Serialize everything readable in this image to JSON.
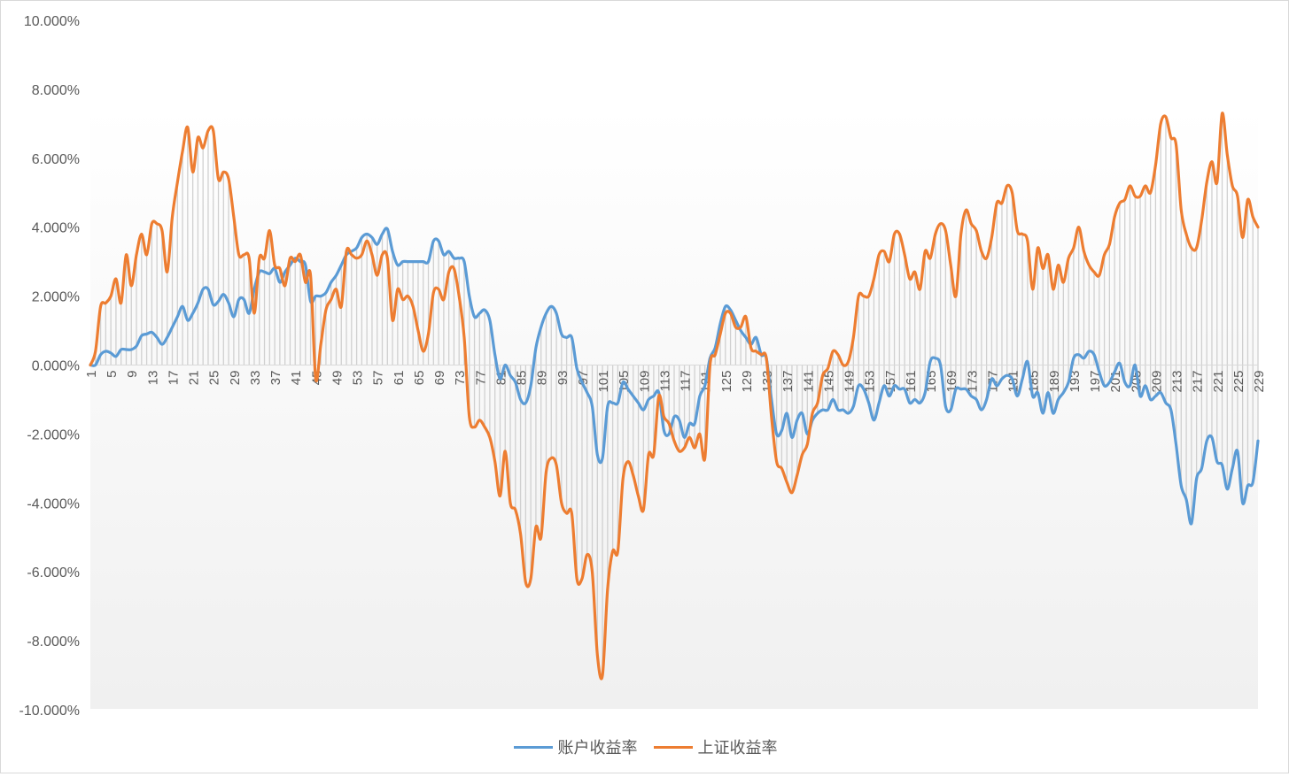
{
  "chart_data": {
    "type": "line",
    "title": "",
    "xlabel": "",
    "ylabel": "",
    "ylim": [
      -10,
      10
    ],
    "y_unit": "%",
    "y_ticks": [
      "10.000%",
      "8.000%",
      "6.000%",
      "4.000%",
      "2.000%",
      "0.000%",
      "-2.000%",
      "-4.000%",
      "-6.000%",
      "-8.000%",
      "-10.000%"
    ],
    "x_range": [
      1,
      229
    ],
    "x_tick_step": 4,
    "legend_position": "bottom",
    "drop_lines": true,
    "series": [
      {
        "name": "账户收益率",
        "color": "#5b9bd5",
        "values": [
          0.0,
          0.0,
          0.3,
          0.4,
          0.35,
          0.25,
          0.45,
          0.45,
          0.45,
          0.55,
          0.85,
          0.9,
          0.95,
          0.8,
          0.6,
          0.8,
          1.1,
          1.4,
          1.7,
          1.3,
          1.5,
          1.8,
          2.2,
          2.2,
          1.75,
          1.85,
          2.05,
          1.8,
          1.4,
          1.9,
          1.9,
          1.5,
          2.2,
          2.7,
          2.7,
          2.65,
          2.8,
          2.4,
          2.7,
          2.9,
          3.1,
          3.0,
          2.9,
          1.85,
          2.0,
          2.0,
          2.1,
          2.4,
          2.6,
          2.9,
          3.2,
          3.3,
          3.4,
          3.7,
          3.8,
          3.7,
          3.5,
          3.8,
          3.95,
          3.3,
          2.9,
          3.0,
          3.0,
          3.0,
          3.0,
          3.0,
          3.0,
          3.6,
          3.6,
          3.2,
          3.3,
          3.1,
          3.1,
          3.0,
          2.0,
          1.4,
          1.5,
          1.6,
          1.3,
          0.3,
          -0.4,
          0.0,
          -0.3,
          -0.5,
          -1.0,
          -1.1,
          -0.6,
          0.5,
          1.1,
          1.5,
          1.7,
          1.5,
          0.9,
          0.8,
          0.8,
          -0.1,
          -0.5,
          -0.8,
          -1.2,
          -2.6,
          -2.7,
          -1.2,
          -1.1,
          -1.1,
          -0.5,
          -0.7,
          -0.9,
          -1.1,
          -1.3,
          -1.0,
          -0.9,
          -0.8,
          -1.9,
          -2.0,
          -1.5,
          -1.6,
          -2.1,
          -1.7,
          -1.7,
          -0.9,
          -0.6,
          0.2,
          0.5,
          1.2,
          1.7,
          1.6,
          1.3,
          1.0,
          0.8,
          0.6,
          0.8,
          0.3,
          0.2,
          -1.0,
          -2.0,
          -1.9,
          -1.4,
          -2.1,
          -1.6,
          -1.4,
          -2.0,
          -1.6,
          -1.4,
          -1.3,
          -1.3,
          -1.0,
          -1.3,
          -1.3,
          -1.4,
          -1.2,
          -0.6,
          -0.7,
          -1.1,
          -1.6,
          -1.1,
          -0.6,
          -0.9,
          -0.6,
          -0.7,
          -0.7,
          -1.1,
          -1.0,
          -1.1,
          -0.8,
          0.1,
          0.2,
          0.0,
          -1.2,
          -1.3,
          -0.7,
          -0.7,
          -0.7,
          -0.9,
          -1.0,
          -1.3,
          -1.0,
          -0.4,
          -0.6,
          -0.4,
          -0.3,
          -0.4,
          -0.9,
          -0.4,
          0.1,
          -0.9,
          -0.8,
          -1.4,
          -0.8,
          -1.4,
          -1.0,
          -0.8,
          -0.5,
          0.2,
          0.3,
          0.2,
          0.4,
          0.3,
          -0.2,
          -0.6,
          -0.5,
          -0.2,
          0.05,
          -0.5,
          -0.6,
          0.0,
          -0.9,
          -0.6,
          -1.0,
          -0.9,
          -0.8,
          -1.1,
          -1.3,
          -2.3,
          -3.5,
          -3.9,
          -4.6,
          -3.3,
          -3.0,
          -2.2,
          -2.1,
          -2.8,
          -2.9,
          -3.6,
          -3.0,
          -2.5,
          -4.0,
          -3.5,
          -3.4,
          -2.2
        ]
      },
      {
        "name": "上证收益率",
        "color": "#ed7d31",
        "values": [
          0.0,
          0.4,
          1.7,
          1.8,
          2.0,
          2.5,
          1.8,
          3.2,
          2.3,
          3.2,
          3.8,
          3.2,
          4.1,
          4.1,
          3.9,
          2.7,
          4.3,
          5.3,
          6.2,
          6.9,
          5.6,
          6.6,
          6.3,
          6.8,
          6.8,
          5.4,
          5.6,
          5.4,
          4.3,
          3.2,
          3.2,
          3.1,
          1.5,
          3.1,
          3.1,
          3.9,
          2.9,
          2.8,
          2.3,
          3.1,
          3.0,
          3.2,
          2.4,
          2.6,
          -0.4,
          0.6,
          1.6,
          1.9,
          2.2,
          1.7,
          3.3,
          3.2,
          3.1,
          3.2,
          3.6,
          3.2,
          2.6,
          3.2,
          3.1,
          1.3,
          2.2,
          1.9,
          2.0,
          1.7,
          1.0,
          0.4,
          0.9,
          2.1,
          2.2,
          1.9,
          2.7,
          2.8,
          2.0,
          0.8,
          -1.5,
          -1.8,
          -1.6,
          -1.8,
          -2.1,
          -2.8,
          -3.8,
          -2.5,
          -4.0,
          -4.2,
          -4.9,
          -6.3,
          -6.2,
          -4.7,
          -5.0,
          -3.1,
          -2.7,
          -2.9,
          -4.0,
          -4.3,
          -4.3,
          -6.2,
          -6.2,
          -5.5,
          -6.0,
          -8.4,
          -9.0,
          -6.5,
          -5.4,
          -5.4,
          -3.3,
          -2.8,
          -3.2,
          -3.8,
          -4.2,
          -2.6,
          -2.6,
          -0.9,
          -1.5,
          -1.7,
          -2.2,
          -2.5,
          -2.4,
          -2.1,
          -2.4,
          -2.0,
          -2.7,
          0.0,
          0.3,
          0.9,
          1.5,
          1.5,
          1.1,
          1.1,
          1.4,
          0.5,
          0.4,
          0.3,
          0.2,
          -1.5,
          -2.8,
          -3.0,
          -3.4,
          -3.7,
          -3.2,
          -2.6,
          -2.3,
          -1.4,
          -1.1,
          -0.3,
          -0.1,
          0.4,
          0.3,
          0.0,
          0.1,
          0.8,
          2.0,
          2.0,
          2.0,
          2.5,
          3.2,
          3.3,
          3.0,
          3.8,
          3.8,
          3.2,
          2.5,
          2.7,
          2.2,
          3.3,
          3.1,
          3.8,
          4.1,
          3.9,
          2.9,
          2.0,
          3.8,
          4.5,
          4.1,
          3.9,
          3.3,
          3.1,
          3.7,
          4.7,
          4.7,
          5.2,
          5.0,
          3.9,
          3.8,
          3.6,
          2.2,
          3.4,
          2.8,
          3.2,
          2.2,
          2.9,
          2.4,
          3.1,
          3.4,
          4.0,
          3.3,
          2.9,
          2.7,
          2.6,
          3.2,
          3.5,
          4.3,
          4.7,
          4.8,
          5.2,
          4.9,
          4.9,
          5.2,
          5.0,
          5.8,
          7.0,
          7.2,
          6.6,
          6.4,
          4.5,
          3.8,
          3.4,
          3.4,
          4.2,
          5.3,
          5.9,
          5.3,
          7.3,
          6.1,
          5.2,
          4.9,
          3.7,
          4.8,
          4.3,
          4.0
        ]
      }
    ]
  }
}
